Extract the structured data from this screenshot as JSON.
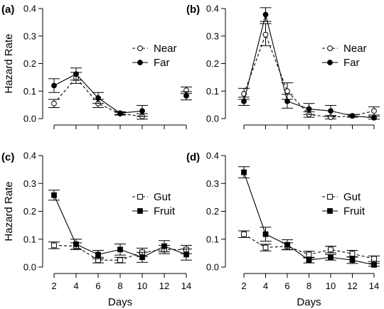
{
  "chart_data": [
    {
      "panel_label": "(a)",
      "type": "line",
      "x": [
        2,
        4,
        6,
        8,
        10,
        12,
        14
      ],
      "ylim": [
        0,
        0.4
      ],
      "ylabel": "Hazard Rate",
      "xlabel": "",
      "yticks": [
        "0.0",
        "0.1",
        "0.2",
        "0.3",
        "0.4"
      ],
      "xticks": [],
      "legend_position": "middle-right",
      "series": [
        {
          "name": "Near",
          "marker": "open-circle",
          "line": "dashed",
          "values": [
            0.055,
            0.148,
            0.055,
            0.018,
            0.008,
            null,
            0.103
          ],
          "err": [
            0.015,
            0.02,
            0.015,
            0.005,
            0.01,
            null,
            0.012
          ]
        },
        {
          "name": "Far",
          "marker": "filled-circle",
          "line": "solid",
          "values": [
            0.12,
            0.162,
            0.075,
            0.02,
            0.028,
            null,
            0.083
          ],
          "err": [
            0.025,
            0.022,
            0.02,
            0.005,
            0.02,
            null,
            0.015
          ]
        }
      ]
    },
    {
      "panel_label": "(b)",
      "type": "line",
      "x": [
        2,
        4,
        6,
        8,
        10,
        12,
        14
      ],
      "ylim": [
        0,
        0.4
      ],
      "ylabel": "",
      "xlabel": "",
      "yticks": [
        "0.0",
        "0.1",
        "0.2",
        "0.3",
        "0.4"
      ],
      "xticks": [],
      "legend_position": "middle-right",
      "series": [
        {
          "name": "Near",
          "marker": "open-circle",
          "line": "dashed",
          "values": [
            0.09,
            0.305,
            0.1,
            0.015,
            0.005,
            0.01,
            0.028
          ],
          "err": [
            0.02,
            0.04,
            0.03,
            0.01,
            0.006,
            0.005,
            0.015
          ]
        },
        {
          "name": "Far",
          "marker": "filled-circle",
          "line": "solid",
          "values": [
            0.063,
            0.378,
            0.063,
            0.035,
            0.028,
            0.01,
            0.003
          ],
          "err": [
            0.015,
            0.025,
            0.025,
            0.02,
            0.02,
            0.005,
            0.005
          ]
        }
      ]
    },
    {
      "panel_label": "(c)",
      "type": "line",
      "x": [
        2,
        4,
        6,
        8,
        10,
        12,
        14
      ],
      "ylim": [
        0,
        0.4
      ],
      "ylabel": "Hazard Rate",
      "xlabel": "Days",
      "yticks": [
        "0.0",
        "0.1",
        "0.2",
        "0.3",
        "0.4"
      ],
      "xticks": [
        "2",
        "4",
        "6",
        "8",
        "10",
        "12",
        "14"
      ],
      "legend_position": "middle-right",
      "series": [
        {
          "name": "Gut",
          "marker": "open-square",
          "line": "dashed",
          "values": [
            0.078,
            0.075,
            0.025,
            0.025,
            0.053,
            0.063,
            0.063
          ],
          "err": [
            0.012,
            0.012,
            0.01,
            0.01,
            0.015,
            0.015,
            0.015
          ]
        },
        {
          "name": "Fruit",
          "marker": "filled-square",
          "line": "solid",
          "values": [
            0.258,
            0.082,
            0.045,
            0.063,
            0.035,
            0.075,
            0.045
          ],
          "err": [
            0.018,
            0.018,
            0.015,
            0.02,
            0.018,
            0.02,
            0.02
          ]
        }
      ]
    },
    {
      "panel_label": "(d)",
      "type": "line",
      "x": [
        2,
        4,
        6,
        8,
        10,
        12,
        14
      ],
      "ylim": [
        0,
        0.4
      ],
      "ylabel": "",
      "xlabel": "Days",
      "yticks": [
        "0.0",
        "0.1",
        "0.2",
        "0.3",
        "0.4"
      ],
      "xticks": [
        "2",
        "4",
        "6",
        "8",
        "10",
        "12",
        "14"
      ],
      "legend_position": "middle-right",
      "series": [
        {
          "name": "Gut",
          "marker": "open-square",
          "line": "dashed",
          "values": [
            0.118,
            0.07,
            0.075,
            0.045,
            0.063,
            0.048,
            0.03
          ],
          "err": [
            0.012,
            0.012,
            0.012,
            0.012,
            0.012,
            0.012,
            0.01
          ]
        },
        {
          "name": "Fruit",
          "marker": "filled-square",
          "line": "solid",
          "values": [
            0.34,
            0.118,
            0.08,
            0.025,
            0.035,
            0.025,
            0.008
          ],
          "err": [
            0.02,
            0.025,
            0.018,
            0.01,
            0.01,
            0.012,
            0.005
          ]
        }
      ]
    }
  ]
}
